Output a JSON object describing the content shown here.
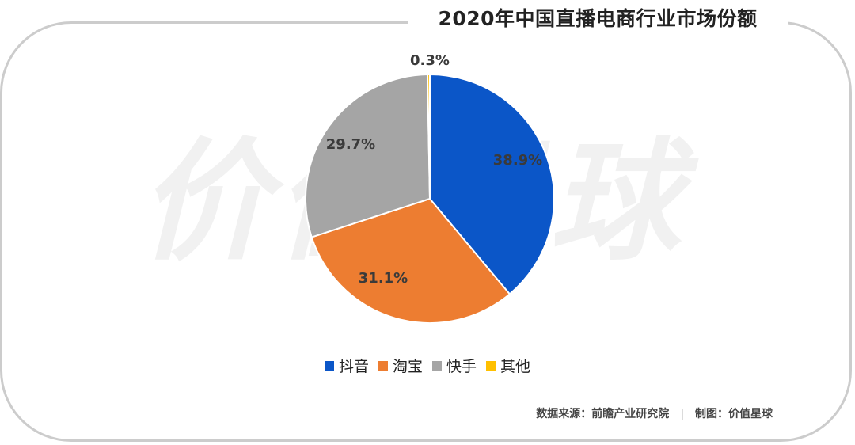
{
  "title": "2020年中国直播电商行业市场份额",
  "watermark": "价值星球",
  "footer": {
    "source": "数据来源：前瞻产业研究院",
    "separator": "|",
    "credit": "制图：价值星球"
  },
  "colors": {
    "抖音": "#0B56C8",
    "淘宝": "#ED7D31",
    "快手": "#A5A5A5",
    "其他": "#FFC000"
  },
  "chart_data": {
    "type": "pie",
    "title": "2020年中国直播电商行业市场份额",
    "unit": "%",
    "legend_position": "bottom",
    "slices": [
      {
        "label": "抖音",
        "value": 38.9,
        "display": "38.9%"
      },
      {
        "label": "淘宝",
        "value": 31.1,
        "display": "31.1%"
      },
      {
        "label": "快手",
        "value": 29.7,
        "display": "29.7%"
      },
      {
        "label": "其他",
        "value": 0.3,
        "display": "0.3%"
      }
    ]
  }
}
